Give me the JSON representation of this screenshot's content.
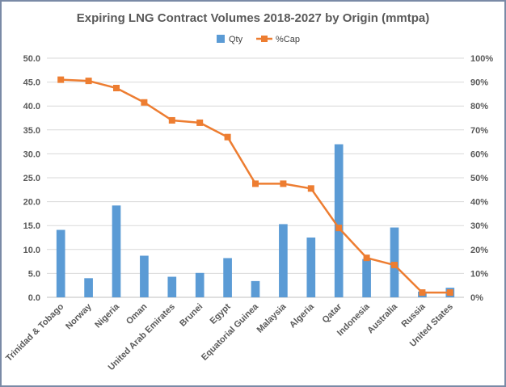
{
  "chart_data": {
    "type": "bar+line",
    "title": "Expiring LNG Contract Volumes 2018-2027 by Origin (mmtpa)",
    "categories": [
      "Trinidad & Tobago",
      "Norway",
      "Nigeria",
      "Oman",
      "United Arab Emirates",
      "Brunei",
      "Egypt",
      "Equatorial Guinea",
      "Malaysia",
      "Algeria",
      "Qatar",
      "Indonesia",
      "Australia",
      "Russia",
      "United States"
    ],
    "series": [
      {
        "name": "Qty",
        "type": "bar",
        "axis": "left",
        "color": "#5b9bd5",
        "values": [
          14.1,
          4.0,
          19.2,
          8.7,
          4.3,
          5.1,
          8.2,
          3.4,
          15.3,
          12.5,
          32.0,
          8.0,
          14.6,
          1.2,
          2.0
        ]
      },
      {
        "name": "%Cap",
        "type": "line",
        "axis": "right",
        "color": "#ed7d31",
        "values": [
          91,
          90.5,
          87.5,
          81.5,
          74,
          73,
          67,
          47.5,
          47.5,
          45.5,
          29,
          16.5,
          13.5,
          2,
          2
        ]
      }
    ],
    "y_left": {
      "min": 0,
      "max": 50,
      "step": 5,
      "tick_labels": [
        "0.0",
        "5.0",
        "10.0",
        "15.0",
        "20.0",
        "25.0",
        "30.0",
        "35.0",
        "40.0",
        "45.0",
        "50.0"
      ]
    },
    "y_right": {
      "min": 0,
      "max": 100,
      "step": 10,
      "tick_labels": [
        "0%",
        "10%",
        "20%",
        "30%",
        "40%",
        "50%",
        "60%",
        "70%",
        "80%",
        "90%",
        "100%"
      ]
    },
    "grid": "horizontal",
    "legend": "top-center"
  }
}
